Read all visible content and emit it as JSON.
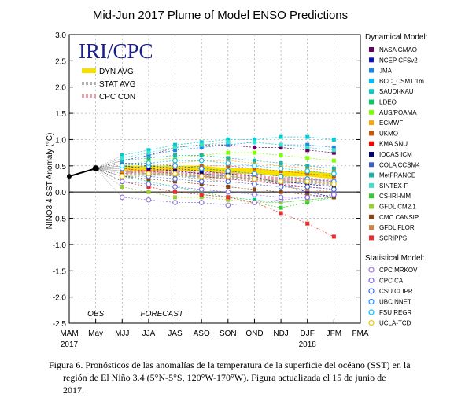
{
  "chart_data": {
    "type": "line",
    "title": "Mid-Jun 2017 Plume of Model ENSO Predictions",
    "ylabel": "NINO3.4 SST Anomaly (°C)",
    "ylim": [
      -2.5,
      3.0
    ],
    "yticks": [
      "3.0",
      "2.5",
      "2.0",
      "1.5",
      "1.0",
      "0.5",
      "0.0",
      "-0.5",
      "-1.0",
      "-1.5",
      "-2.0",
      "-2.5"
    ],
    "yvals": [
      3.0,
      2.5,
      2.0,
      1.5,
      1.0,
      0.5,
      0.0,
      -0.5,
      -1.0,
      -1.5,
      -2.0,
      -2.5
    ],
    "categories": [
      "MAM",
      "May",
      "MJJ",
      "JJA",
      "JAS",
      "ASO",
      "SON",
      "OND",
      "NDJ",
      "DJF",
      "JFM",
      "FMA"
    ],
    "year_labels": [
      "2017",
      "2018"
    ],
    "obs_label": "OBS",
    "forecast_label": "FORECAST",
    "logo": "IRI/CPC",
    "avg_legend": [
      {
        "name": "DYN AVG",
        "color": "#f5e000"
      },
      {
        "name": "STAT AVG",
        "color": "#b0b0b0"
      },
      {
        "name": "CPC CON",
        "color": "#e8a0a8"
      }
    ],
    "observed": [
      0.3,
      0.45
    ],
    "dynamical_title": "Dynamical Model:",
    "statistical_title": "Statistical Model:",
    "dynamical": [
      {
        "name": "NASA GMAO",
        "color": "#660066",
        "values": [
          0.6,
          0.7,
          0.85,
          0.9,
          0.9,
          0.85,
          0.85,
          0.8,
          0.75
        ]
      },
      {
        "name": "NCEP CFSv2",
        "color": "#1010c0",
        "values": [
          0.55,
          0.5,
          0.45,
          0.4,
          0.35,
          0.3,
          0.15,
          0.0,
          -0.1
        ]
      },
      {
        "name": "JMA",
        "color": "#1c86ee",
        "values": [
          0.6,
          0.7,
          0.8,
          0.85,
          0.9,
          0.95,
          0.9,
          0.9,
          0.85
        ]
      },
      {
        "name": "BCC_CSM1.1m",
        "color": "#00bfff",
        "values": [
          0.4,
          0.35,
          0.3,
          0.3,
          0.25,
          0.2,
          0.15,
          0.1,
          0.05
        ]
      },
      {
        "name": "SAUDI-KAU",
        "color": "#00ced1",
        "values": [
          0.7,
          0.8,
          0.9,
          0.95,
          1.0,
          1.0,
          1.05,
          1.05,
          1.0
        ]
      },
      {
        "name": "LDEO",
        "color": "#00cd66",
        "values": [
          0.3,
          0.2,
          0.1,
          0.0,
          -0.1,
          -0.15,
          -0.2,
          -0.15,
          -0.1
        ]
      },
      {
        "name": "AUS/POAMA",
        "color": "#7fff00",
        "values": [
          0.5,
          0.6,
          0.65,
          0.7,
          0.75,
          0.75,
          0.7,
          0.65,
          0.6
        ]
      },
      {
        "name": "ECMWF",
        "color": "#ffa500",
        "values": [
          0.45,
          0.5,
          0.55,
          0.6,
          0.6,
          0.55,
          0.5,
          0.45,
          0.4
        ]
      },
      {
        "name": "UKMO",
        "color": "#cd5500",
        "values": [
          0.35,
          0.4,
          0.45,
          0.5,
          0.5,
          0.45,
          0.4,
          0.35,
          0.3
        ]
      },
      {
        "name": "KMA SNU",
        "color": "#ff0000",
        "values": [
          0.45,
          0.4,
          0.35,
          0.3,
          0.25,
          0.2,
          0.15,
          0.1,
          0.05
        ]
      },
      {
        "name": "IOCAS ICM",
        "color": "#000080",
        "values": [
          0.5,
          0.45,
          0.4,
          0.35,
          0.3,
          0.25,
          0.2,
          0.15,
          0.1
        ]
      },
      {
        "name": "COLA CCSM4",
        "color": "#3a5fcd",
        "values": [
          0.55,
          0.55,
          0.5,
          0.45,
          0.4,
          0.35,
          0.3,
          0.25,
          0.2
        ]
      },
      {
        "name": "MetFRANCE",
        "color": "#20b2aa",
        "values": [
          0.6,
          0.65,
          0.7,
          0.7,
          0.65,
          0.6,
          0.55,
          0.5,
          0.45
        ]
      },
      {
        "name": "SINTEX-F",
        "color": "#40e0d0",
        "values": [
          0.65,
          0.75,
          0.85,
          0.9,
          0.95,
          0.95,
          0.9,
          0.85,
          0.8
        ]
      },
      {
        "name": "CS-IRI-MM",
        "color": "#32cd32",
        "values": [
          0.2,
          0.1,
          0.0,
          -0.05,
          -0.1,
          -0.2,
          -0.3,
          -0.2,
          -0.1
        ]
      },
      {
        "name": "GFDL CM2.1",
        "color": "#9acd32",
        "values": [
          0.1,
          0.0,
          -0.1,
          -0.1,
          -0.15,
          -0.2,
          -0.2,
          -0.15,
          -0.1
        ]
      },
      {
        "name": "CMC CANSIP",
        "color": "#8b4513",
        "values": [
          0.3,
          0.25,
          0.2,
          0.15,
          0.1,
          0.05,
          0.0,
          -0.05,
          -0.1
        ]
      },
      {
        "name": "GFDL FLOR",
        "color": "#cd853f",
        "values": [
          0.4,
          0.35,
          0.3,
          0.25,
          0.2,
          0.15,
          0.1,
          0.05,
          0.0
        ]
      },
      {
        "name": "SCRIPPS",
        "color": "#ee2c2c",
        "values": [
          0.2,
          0.1,
          0.0,
          -0.05,
          -0.1,
          -0.2,
          -0.4,
          -0.6,
          -0.85
        ]
      }
    ],
    "statistical": [
      {
        "name": "CPC MRKOV",
        "color": "#9370db",
        "values": [
          -0.1,
          -0.15,
          -0.2,
          -0.2,
          -0.25,
          -0.2,
          -0.15,
          -0.1,
          -0.05
        ]
      },
      {
        "name": "CPC CA",
        "color": "#7b68ee",
        "values": [
          0.2,
          0.15,
          0.1,
          0.05,
          0.0,
          -0.05,
          -0.1,
          -0.1,
          -0.05
        ]
      },
      {
        "name": "CSU CLIPR",
        "color": "#4169e1",
        "values": [
          0.3,
          0.3,
          0.25,
          0.2,
          0.2,
          0.15,
          0.1,
          0.1,
          0.05
        ]
      },
      {
        "name": "UBC NNET",
        "color": "#1e90ff",
        "values": [
          0.45,
          0.5,
          0.5,
          0.45,
          0.4,
          0.35,
          0.3,
          0.25,
          0.2
        ]
      },
      {
        "name": "FSU REGR",
        "color": "#00bfff",
        "values": [
          0.5,
          0.55,
          0.6,
          0.6,
          0.55,
          0.5,
          0.45,
          0.4,
          0.35
        ]
      },
      {
        "name": "UCLA-TCD",
        "color": "#eec900",
        "values": [
          0.3,
          0.35,
          0.35,
          0.3,
          0.3,
          0.25,
          0.2,
          0.2,
          0.15
        ]
      }
    ],
    "dyn_avg": [
      0.45,
      0.45,
      0.45,
      0.45,
      0.4,
      0.4,
      0.35,
      0.35,
      0.3
    ],
    "stat_avg": [
      0.35,
      0.35,
      0.35,
      0.3,
      0.3,
      0.25,
      0.2,
      0.2,
      0.15
    ],
    "cpc_con": [
      0.4,
      0.4,
      0.4,
      0.35,
      0.35,
      0.3,
      0.25,
      0.25,
      0.2
    ]
  },
  "caption": {
    "line1": "Figura 6. Pronósticos de las anomalías de la temperatura de la superficie del océano (SST) en la",
    "line2": "región de El Niño 3.4 (5°N-5°S, 120°W-170°W). Figura actualizada el 15 de junio de",
    "line3": "2017."
  }
}
